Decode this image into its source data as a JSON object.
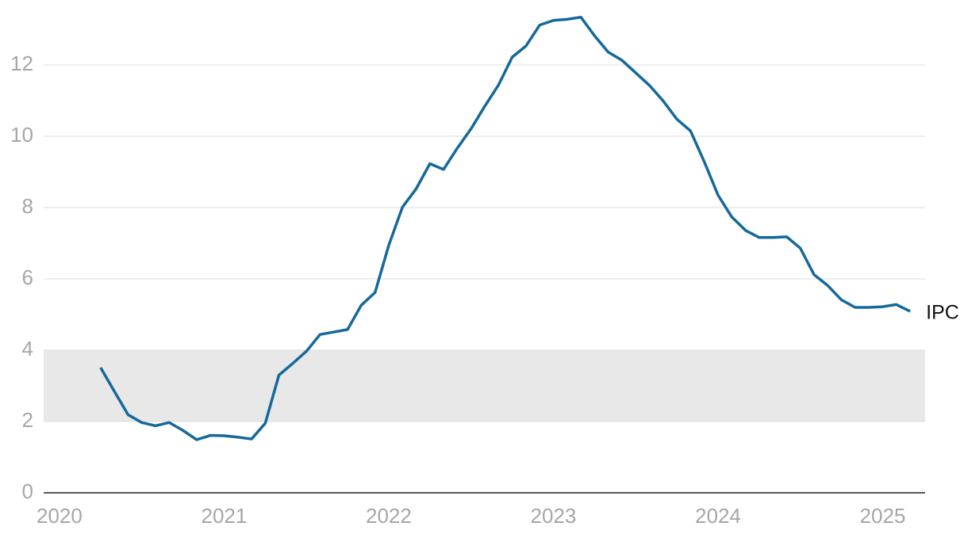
{
  "chart_data": {
    "type": "line",
    "x": [
      2020.25,
      2020.333,
      2020.417,
      2020.5,
      2020.583,
      2020.667,
      2020.75,
      2020.833,
      2020.917,
      2021,
      2021.083,
      2021.167,
      2021.25,
      2021.333,
      2021.417,
      2021.5,
      2021.583,
      2021.667,
      2021.75,
      2021.833,
      2021.917,
      2022,
      2022.083,
      2022.167,
      2022.25,
      2022.333,
      2022.417,
      2022.5,
      2022.583,
      2022.667,
      2022.75,
      2022.833,
      2022.917,
      2023,
      2023.083,
      2023.167,
      2023.25,
      2023.333,
      2023.417,
      2023.5,
      2023.583,
      2023.667,
      2023.75,
      2023.833,
      2023.917,
      2024,
      2024.083,
      2024.167,
      2024.25,
      2024.333,
      2024.417,
      2024.5,
      2024.583,
      2024.667,
      2024.75,
      2024.833,
      2024.917,
      2025,
      2025.083,
      2025.167
    ],
    "series": [
      {
        "name": "IPC",
        "color": "#15699a",
        "values": [
          3.51,
          2.85,
          2.19,
          1.97,
          1.88,
          1.97,
          1.75,
          1.49,
          1.61,
          1.6,
          1.56,
          1.51,
          1.95,
          3.3,
          3.63,
          3.97,
          4.44,
          4.51,
          4.58,
          5.26,
          5.62,
          6.94,
          8.01,
          8.53,
          9.23,
          9.07,
          9.67,
          10.21,
          10.84,
          11.44,
          12.22,
          12.53,
          13.12,
          13.25,
          13.28,
          13.34,
          12.82,
          12.36,
          12.13,
          11.78,
          11.43,
          10.99,
          10.48,
          10.15,
          9.28,
          8.35,
          7.74,
          7.36,
          7.16,
          7.16,
          7.18,
          6.86,
          6.12,
          5.81,
          5.41,
          5.2,
          5.2,
          5.22,
          5.28,
          5.09
        ]
      }
    ],
    "shaded_band": [
      2,
      4
    ],
    "xlim": [
      2019.904,
      2025.258
    ],
    "xticks": [
      2020,
      2021,
      2022,
      2023,
      2024,
      2025
    ],
    "ylim": [
      0,
      13.4
    ],
    "yticks": [
      0,
      2,
      4,
      6,
      8,
      10,
      12
    ],
    "grid": true
  }
}
